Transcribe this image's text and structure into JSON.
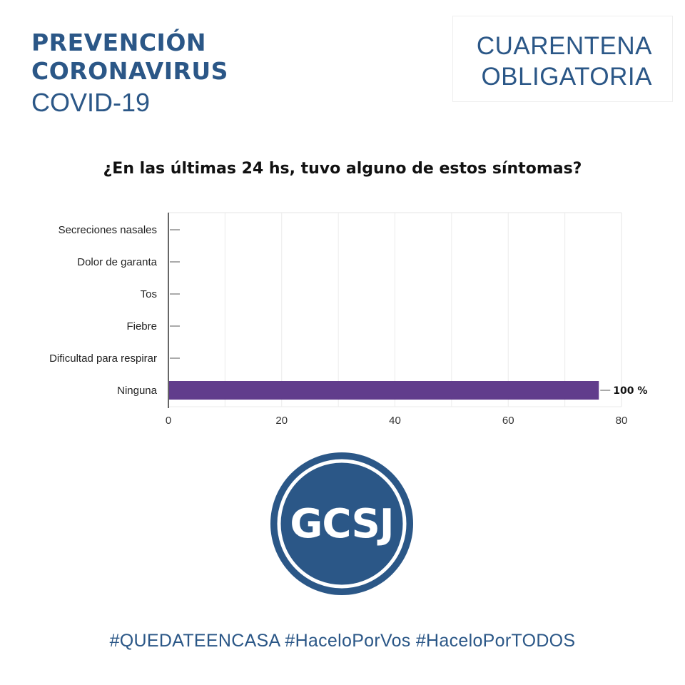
{
  "header": {
    "line1": "PREVENCIÓN",
    "line2": "CORONAVIRUS",
    "line3": "COVID-19",
    "badge_line1": "CUARENTENA",
    "badge_line2": "OBLIGATORIA"
  },
  "colors": {
    "brand_blue": "#2b5787",
    "bar": "#613d8c"
  },
  "chart_data": {
    "type": "bar",
    "orientation": "horizontal",
    "title": "¿En las últimas 24 hs, tuvo alguno de estos síntomas?",
    "categories": [
      "Secreciones nasales",
      "Dolor de garanta",
      "Tos",
      "Fiebre",
      "Dificultad para respirar",
      "Ninguna"
    ],
    "values": [
      0,
      0,
      0,
      0,
      0,
      76
    ],
    "data_labels": [
      "",
      "",
      "",
      "",
      "",
      "100 %"
    ],
    "xlim": [
      0,
      80
    ],
    "xticks": [
      0,
      20,
      40,
      60,
      80
    ],
    "grid": true,
    "bar_color": "#613d8c"
  },
  "logo": {
    "text": "GCSJ"
  },
  "footer": {
    "hashtags": "#QUEDATEENCASA #HaceloPorVos #HaceloPorTODOS"
  }
}
